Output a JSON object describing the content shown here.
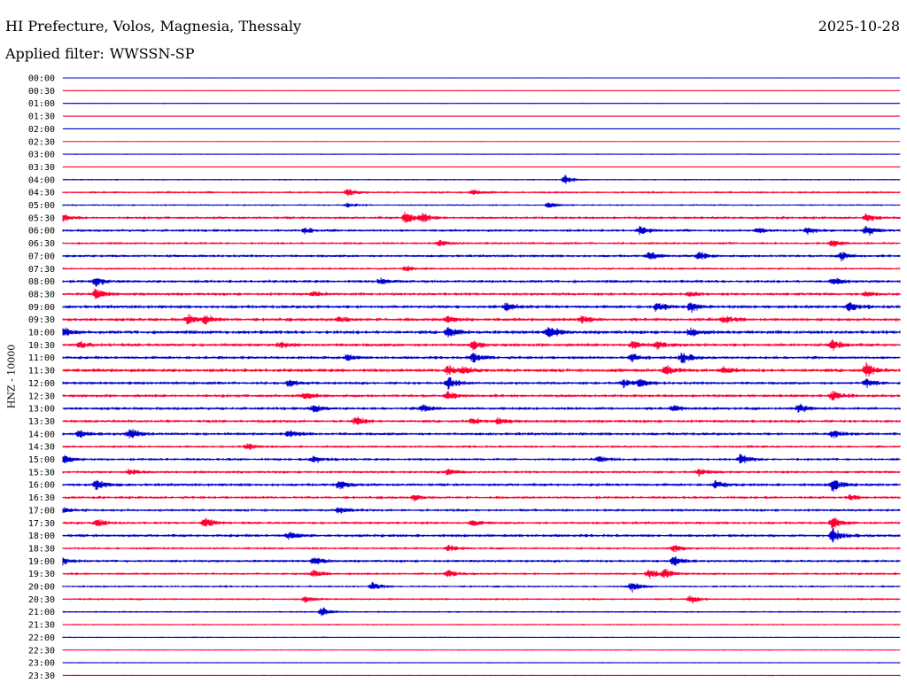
{
  "header": {
    "title": "HI Prefecture, Volos, Magnesia, Thessaly",
    "date": "2025-10-28",
    "filter_label": "Applied filter:",
    "filter_value": "WWSSN-SP"
  },
  "chart_data": {
    "type": "line",
    "title": "HI Prefecture, Volos, Magnesia, Thessaly",
    "subtitle": "Applied filter: WWSSN-SP",
    "xlabel": "",
    "ylabel": "HNZ - 10000",
    "grid": false,
    "trace_colors": [
      "#0000cc",
      "#ff0033"
    ],
    "categories": [
      "00:00",
      "00:30",
      "01:00",
      "01:30",
      "02:00",
      "02:30",
      "03:00",
      "03:30",
      "04:00",
      "04:30",
      "05:00",
      "05:30",
      "06:00",
      "06:30",
      "07:00",
      "07:30",
      "08:00",
      "08:30",
      "09:00",
      "09:30",
      "10:00",
      "10:30",
      "11:00",
      "11:30",
      "12:00",
      "12:30",
      "13:00",
      "13:30",
      "14:00",
      "14:30",
      "15:00",
      "15:30",
      "16:00",
      "16:30",
      "17:00",
      "17:30",
      "18:00",
      "18:30",
      "19:00",
      "19:30",
      "20:00",
      "20:30",
      "21:00",
      "21:30",
      "22:00",
      "22:30",
      "23:00",
      "23:30"
    ],
    "noise_level": [
      0.6,
      0.5,
      0.7,
      0.5,
      0.6,
      0.5,
      0.8,
      0.6,
      1.0,
      1.5,
      1.2,
      1.8,
      1.8,
      1.6,
      1.8,
      1.5,
      2.0,
      2.0,
      2.2,
      2.2,
      2.4,
      2.2,
      2.0,
      2.4,
      2.0,
      2.0,
      2.0,
      2.0,
      2.0,
      1.6,
      1.8,
      1.8,
      2.0,
      1.8,
      1.8,
      1.8,
      2.0,
      1.6,
      1.8,
      1.6,
      1.4,
      1.4,
      1.2,
      1.0,
      0.9,
      0.8,
      0.8,
      0.8
    ],
    "events": [
      {
        "row": 8,
        "t": 0.6,
        "amp": 5
      },
      {
        "row": 9,
        "t": 0.34,
        "amp": 6
      },
      {
        "row": 9,
        "t": 0.49,
        "amp": 4
      },
      {
        "row": 10,
        "t": 0.34,
        "amp": 3
      },
      {
        "row": 10,
        "t": 0.58,
        "amp": 4
      },
      {
        "row": 11,
        "t": 0.0,
        "amp": 4
      },
      {
        "row": 11,
        "t": 0.41,
        "amp": 9
      },
      {
        "row": 11,
        "t": 0.43,
        "amp": 5
      },
      {
        "row": 11,
        "t": 0.96,
        "amp": 5
      },
      {
        "row": 12,
        "t": 0.29,
        "amp": 4
      },
      {
        "row": 12,
        "t": 0.69,
        "amp": 5
      },
      {
        "row": 12,
        "t": 0.83,
        "amp": 4
      },
      {
        "row": 12,
        "t": 0.89,
        "amp": 5
      },
      {
        "row": 12,
        "t": 0.96,
        "amp": 7
      },
      {
        "row": 13,
        "t": 0.45,
        "amp": 4
      },
      {
        "row": 13,
        "t": 0.92,
        "amp": 5
      },
      {
        "row": 14,
        "t": 0.7,
        "amp": 6
      },
      {
        "row": 14,
        "t": 0.76,
        "amp": 6
      },
      {
        "row": 14,
        "t": 0.93,
        "amp": 5
      },
      {
        "row": 15,
        "t": 0.41,
        "amp": 3
      },
      {
        "row": 16,
        "t": 0.04,
        "amp": 6
      },
      {
        "row": 16,
        "t": 0.38,
        "amp": 4
      },
      {
        "row": 16,
        "t": 0.92,
        "amp": 5
      },
      {
        "row": 17,
        "t": 0.04,
        "amp": 7
      },
      {
        "row": 17,
        "t": 0.3,
        "amp": 3
      },
      {
        "row": 17,
        "t": 0.75,
        "amp": 3
      },
      {
        "row": 17,
        "t": 0.96,
        "amp": 4
      },
      {
        "row": 18,
        "t": 0.53,
        "amp": 6
      },
      {
        "row": 18,
        "t": 0.71,
        "amp": 6
      },
      {
        "row": 18,
        "t": 0.75,
        "amp": 6
      },
      {
        "row": 18,
        "t": 0.94,
        "amp": 6
      },
      {
        "row": 19,
        "t": 0.15,
        "amp": 6
      },
      {
        "row": 19,
        "t": 0.17,
        "amp": 6
      },
      {
        "row": 19,
        "t": 0.33,
        "amp": 4
      },
      {
        "row": 19,
        "t": 0.46,
        "amp": 5
      },
      {
        "row": 19,
        "t": 0.62,
        "amp": 5
      },
      {
        "row": 19,
        "t": 0.79,
        "amp": 5
      },
      {
        "row": 20,
        "t": 0.0,
        "amp": 6
      },
      {
        "row": 20,
        "t": 0.46,
        "amp": 7
      },
      {
        "row": 20,
        "t": 0.58,
        "amp": 8
      },
      {
        "row": 20,
        "t": 0.75,
        "amp": 5
      },
      {
        "row": 21,
        "t": 0.02,
        "amp": 4
      },
      {
        "row": 21,
        "t": 0.26,
        "amp": 4
      },
      {
        "row": 21,
        "t": 0.49,
        "amp": 6
      },
      {
        "row": 21,
        "t": 0.68,
        "amp": 5
      },
      {
        "row": 21,
        "t": 0.71,
        "amp": 5
      },
      {
        "row": 21,
        "t": 0.92,
        "amp": 7
      },
      {
        "row": 22,
        "t": 0.34,
        "amp": 4
      },
      {
        "row": 22,
        "t": 0.49,
        "amp": 7
      },
      {
        "row": 22,
        "t": 0.68,
        "amp": 5
      },
      {
        "row": 22,
        "t": 0.74,
        "amp": 7
      },
      {
        "row": 23,
        "t": 0.46,
        "amp": 6
      },
      {
        "row": 23,
        "t": 0.48,
        "amp": 5
      },
      {
        "row": 23,
        "t": 0.72,
        "amp": 6
      },
      {
        "row": 23,
        "t": 0.79,
        "amp": 6
      },
      {
        "row": 23,
        "t": 0.96,
        "amp": 9
      },
      {
        "row": 24,
        "t": 0.27,
        "amp": 4
      },
      {
        "row": 24,
        "t": 0.46,
        "amp": 8
      },
      {
        "row": 24,
        "t": 0.67,
        "amp": 6
      },
      {
        "row": 24,
        "t": 0.69,
        "amp": 5
      },
      {
        "row": 24,
        "t": 0.96,
        "amp": 6
      },
      {
        "row": 25,
        "t": 0.29,
        "amp": 5
      },
      {
        "row": 25,
        "t": 0.46,
        "amp": 5
      },
      {
        "row": 25,
        "t": 0.92,
        "amp": 6
      },
      {
        "row": 26,
        "t": 0.3,
        "amp": 5
      },
      {
        "row": 26,
        "t": 0.43,
        "amp": 5
      },
      {
        "row": 26,
        "t": 0.73,
        "amp": 4
      },
      {
        "row": 26,
        "t": 0.88,
        "amp": 6
      },
      {
        "row": 27,
        "t": 0.35,
        "amp": 6
      },
      {
        "row": 27,
        "t": 0.49,
        "amp": 4
      },
      {
        "row": 27,
        "t": 0.52,
        "amp": 4
      },
      {
        "row": 28,
        "t": 0.02,
        "amp": 5
      },
      {
        "row": 28,
        "t": 0.08,
        "amp": 7
      },
      {
        "row": 28,
        "t": 0.27,
        "amp": 5
      },
      {
        "row": 28,
        "t": 0.92,
        "amp": 6
      },
      {
        "row": 29,
        "t": 0.22,
        "amp": 4
      },
      {
        "row": 30,
        "t": 0.0,
        "amp": 7
      },
      {
        "row": 30,
        "t": 0.3,
        "amp": 5
      },
      {
        "row": 30,
        "t": 0.64,
        "amp": 4
      },
      {
        "row": 30,
        "t": 0.81,
        "amp": 6
      },
      {
        "row": 31,
        "t": 0.08,
        "amp": 4
      },
      {
        "row": 31,
        "t": 0.46,
        "amp": 5
      },
      {
        "row": 31,
        "t": 0.76,
        "amp": 5
      },
      {
        "row": 32,
        "t": 0.04,
        "amp": 8
      },
      {
        "row": 32,
        "t": 0.33,
        "amp": 6
      },
      {
        "row": 32,
        "t": 0.78,
        "amp": 5
      },
      {
        "row": 32,
        "t": 0.92,
        "amp": 9
      },
      {
        "row": 33,
        "t": 0.42,
        "amp": 4
      },
      {
        "row": 33,
        "t": 0.94,
        "amp": 3
      },
      {
        "row": 34,
        "t": 0.0,
        "amp": 4
      },
      {
        "row": 34,
        "t": 0.33,
        "amp": 5
      },
      {
        "row": 35,
        "t": 0.04,
        "amp": 6
      },
      {
        "row": 35,
        "t": 0.17,
        "amp": 7
      },
      {
        "row": 35,
        "t": 0.49,
        "amp": 4
      },
      {
        "row": 35,
        "t": 0.92,
        "amp": 8
      },
      {
        "row": 36,
        "t": 0.27,
        "amp": 5
      },
      {
        "row": 36,
        "t": 0.92,
        "amp": 9
      },
      {
        "row": 37,
        "t": 0.46,
        "amp": 4
      },
      {
        "row": 37,
        "t": 0.73,
        "amp": 5
      },
      {
        "row": 38,
        "t": 0.0,
        "amp": 6
      },
      {
        "row": 38,
        "t": 0.3,
        "amp": 5
      },
      {
        "row": 38,
        "t": 0.73,
        "amp": 7
      },
      {
        "row": 39,
        "t": 0.3,
        "amp": 5
      },
      {
        "row": 39,
        "t": 0.46,
        "amp": 5
      },
      {
        "row": 39,
        "t": 0.7,
        "amp": 7
      },
      {
        "row": 39,
        "t": 0.72,
        "amp": 6
      },
      {
        "row": 40,
        "t": 0.37,
        "amp": 5
      },
      {
        "row": 40,
        "t": 0.68,
        "amp": 7
      },
      {
        "row": 41,
        "t": 0.29,
        "amp": 4
      },
      {
        "row": 41,
        "t": 0.75,
        "amp": 5
      },
      {
        "row": 42,
        "t": 0.31,
        "amp": 6
      }
    ]
  }
}
